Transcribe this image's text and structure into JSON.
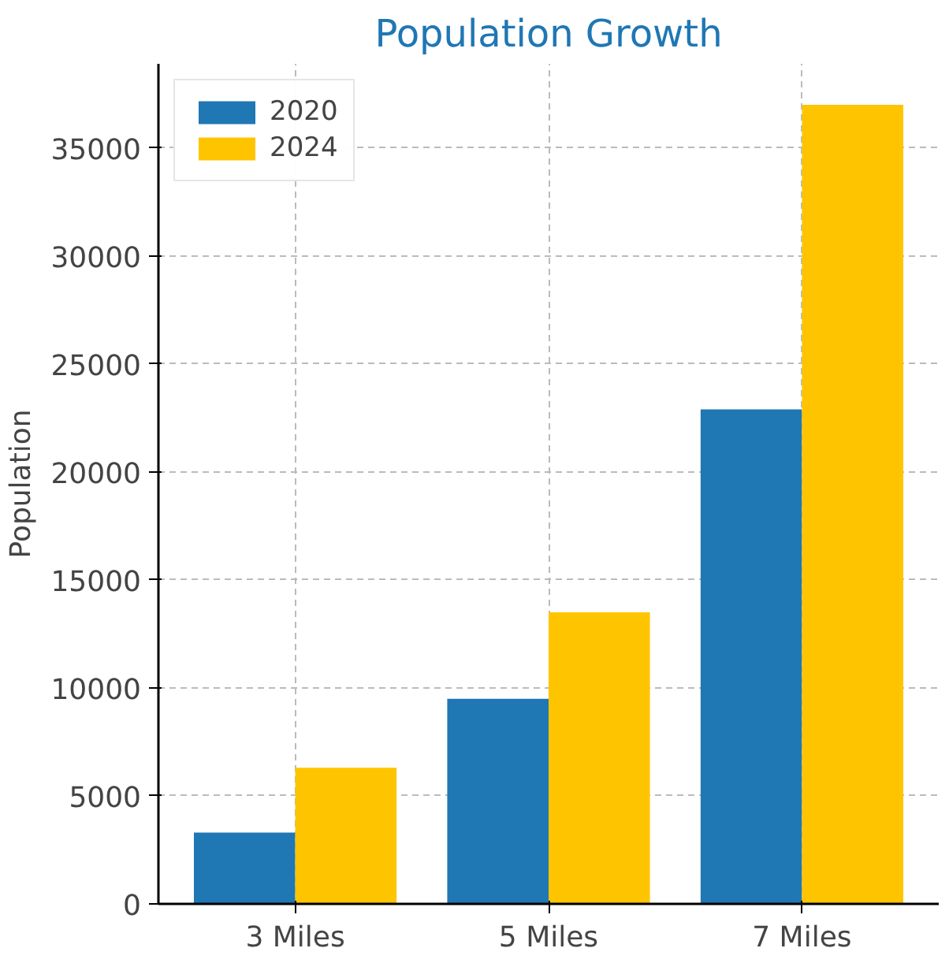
{
  "chart_data": {
    "type": "bar",
    "title": "Population Growth",
    "ylabel": "Population",
    "categories": [
      "3 Miles",
      "5 Miles",
      "7 Miles"
    ],
    "series": [
      {
        "name": "2020",
        "color": "#1f77b4",
        "values": [
          3300,
          9500,
          22900
        ]
      },
      {
        "name": "2024",
        "color": "#ffc400",
        "values": [
          6300,
          13500,
          37000
        ]
      }
    ],
    "ylim": [
      0,
      38900
    ],
    "yticks": [
      0,
      5000,
      10000,
      15000,
      20000,
      25000,
      30000,
      35000
    ],
    "grid": true,
    "legend": "top left"
  }
}
